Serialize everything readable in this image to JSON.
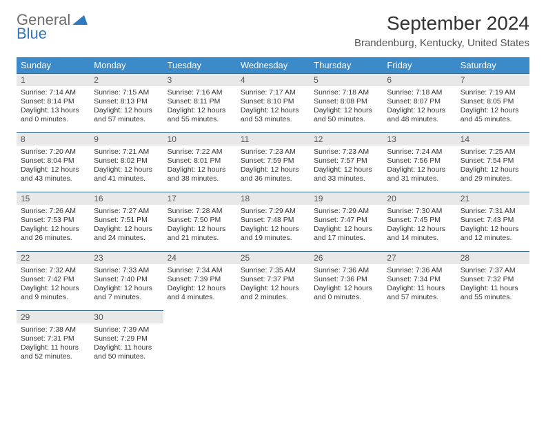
{
  "logo": {
    "general": "General",
    "blue": "Blue",
    "blue_color": "#2e79c0",
    "gray_color": "#6e6e6e"
  },
  "title": "September 2024",
  "location": "Brandenburg, Kentucky, United States",
  "weekdays": [
    "Sunday",
    "Monday",
    "Tuesday",
    "Wednesday",
    "Thursday",
    "Friday",
    "Saturday"
  ],
  "header_bg": "#3b8bca",
  "day_border": "#2e5f8a",
  "daynum_bg": "#e8e8e8",
  "weeks": [
    [
      {
        "n": "1",
        "sr": "Sunrise: 7:14 AM",
        "ss": "Sunset: 8:14 PM",
        "dl1": "Daylight: 13 hours",
        "dl2": "and 0 minutes."
      },
      {
        "n": "2",
        "sr": "Sunrise: 7:15 AM",
        "ss": "Sunset: 8:13 PM",
        "dl1": "Daylight: 12 hours",
        "dl2": "and 57 minutes."
      },
      {
        "n": "3",
        "sr": "Sunrise: 7:16 AM",
        "ss": "Sunset: 8:11 PM",
        "dl1": "Daylight: 12 hours",
        "dl2": "and 55 minutes."
      },
      {
        "n": "4",
        "sr": "Sunrise: 7:17 AM",
        "ss": "Sunset: 8:10 PM",
        "dl1": "Daylight: 12 hours",
        "dl2": "and 53 minutes."
      },
      {
        "n": "5",
        "sr": "Sunrise: 7:18 AM",
        "ss": "Sunset: 8:08 PM",
        "dl1": "Daylight: 12 hours",
        "dl2": "and 50 minutes."
      },
      {
        "n": "6",
        "sr": "Sunrise: 7:18 AM",
        "ss": "Sunset: 8:07 PM",
        "dl1": "Daylight: 12 hours",
        "dl2": "and 48 minutes."
      },
      {
        "n": "7",
        "sr": "Sunrise: 7:19 AM",
        "ss": "Sunset: 8:05 PM",
        "dl1": "Daylight: 12 hours",
        "dl2": "and 45 minutes."
      }
    ],
    [
      {
        "n": "8",
        "sr": "Sunrise: 7:20 AM",
        "ss": "Sunset: 8:04 PM",
        "dl1": "Daylight: 12 hours",
        "dl2": "and 43 minutes."
      },
      {
        "n": "9",
        "sr": "Sunrise: 7:21 AM",
        "ss": "Sunset: 8:02 PM",
        "dl1": "Daylight: 12 hours",
        "dl2": "and 41 minutes."
      },
      {
        "n": "10",
        "sr": "Sunrise: 7:22 AM",
        "ss": "Sunset: 8:01 PM",
        "dl1": "Daylight: 12 hours",
        "dl2": "and 38 minutes."
      },
      {
        "n": "11",
        "sr": "Sunrise: 7:23 AM",
        "ss": "Sunset: 7:59 PM",
        "dl1": "Daylight: 12 hours",
        "dl2": "and 36 minutes."
      },
      {
        "n": "12",
        "sr": "Sunrise: 7:23 AM",
        "ss": "Sunset: 7:57 PM",
        "dl1": "Daylight: 12 hours",
        "dl2": "and 33 minutes."
      },
      {
        "n": "13",
        "sr": "Sunrise: 7:24 AM",
        "ss": "Sunset: 7:56 PM",
        "dl1": "Daylight: 12 hours",
        "dl2": "and 31 minutes."
      },
      {
        "n": "14",
        "sr": "Sunrise: 7:25 AM",
        "ss": "Sunset: 7:54 PM",
        "dl1": "Daylight: 12 hours",
        "dl2": "and 29 minutes."
      }
    ],
    [
      {
        "n": "15",
        "sr": "Sunrise: 7:26 AM",
        "ss": "Sunset: 7:53 PM",
        "dl1": "Daylight: 12 hours",
        "dl2": "and 26 minutes."
      },
      {
        "n": "16",
        "sr": "Sunrise: 7:27 AM",
        "ss": "Sunset: 7:51 PM",
        "dl1": "Daylight: 12 hours",
        "dl2": "and 24 minutes."
      },
      {
        "n": "17",
        "sr": "Sunrise: 7:28 AM",
        "ss": "Sunset: 7:50 PM",
        "dl1": "Daylight: 12 hours",
        "dl2": "and 21 minutes."
      },
      {
        "n": "18",
        "sr": "Sunrise: 7:29 AM",
        "ss": "Sunset: 7:48 PM",
        "dl1": "Daylight: 12 hours",
        "dl2": "and 19 minutes."
      },
      {
        "n": "19",
        "sr": "Sunrise: 7:29 AM",
        "ss": "Sunset: 7:47 PM",
        "dl1": "Daylight: 12 hours",
        "dl2": "and 17 minutes."
      },
      {
        "n": "20",
        "sr": "Sunrise: 7:30 AM",
        "ss": "Sunset: 7:45 PM",
        "dl1": "Daylight: 12 hours",
        "dl2": "and 14 minutes."
      },
      {
        "n": "21",
        "sr": "Sunrise: 7:31 AM",
        "ss": "Sunset: 7:43 PM",
        "dl1": "Daylight: 12 hours",
        "dl2": "and 12 minutes."
      }
    ],
    [
      {
        "n": "22",
        "sr": "Sunrise: 7:32 AM",
        "ss": "Sunset: 7:42 PM",
        "dl1": "Daylight: 12 hours",
        "dl2": "and 9 minutes."
      },
      {
        "n": "23",
        "sr": "Sunrise: 7:33 AM",
        "ss": "Sunset: 7:40 PM",
        "dl1": "Daylight: 12 hours",
        "dl2": "and 7 minutes."
      },
      {
        "n": "24",
        "sr": "Sunrise: 7:34 AM",
        "ss": "Sunset: 7:39 PM",
        "dl1": "Daylight: 12 hours",
        "dl2": "and 4 minutes."
      },
      {
        "n": "25",
        "sr": "Sunrise: 7:35 AM",
        "ss": "Sunset: 7:37 PM",
        "dl1": "Daylight: 12 hours",
        "dl2": "and 2 minutes."
      },
      {
        "n": "26",
        "sr": "Sunrise: 7:36 AM",
        "ss": "Sunset: 7:36 PM",
        "dl1": "Daylight: 12 hours",
        "dl2": "and 0 minutes."
      },
      {
        "n": "27",
        "sr": "Sunrise: 7:36 AM",
        "ss": "Sunset: 7:34 PM",
        "dl1": "Daylight: 11 hours",
        "dl2": "and 57 minutes."
      },
      {
        "n": "28",
        "sr": "Sunrise: 7:37 AM",
        "ss": "Sunset: 7:32 PM",
        "dl1": "Daylight: 11 hours",
        "dl2": "and 55 minutes."
      }
    ],
    [
      {
        "n": "29",
        "sr": "Sunrise: 7:38 AM",
        "ss": "Sunset: 7:31 PM",
        "dl1": "Daylight: 11 hours",
        "dl2": "and 52 minutes."
      },
      {
        "n": "30",
        "sr": "Sunrise: 7:39 AM",
        "ss": "Sunset: 7:29 PM",
        "dl1": "Daylight: 11 hours",
        "dl2": "and 50 minutes."
      },
      null,
      null,
      null,
      null,
      null
    ]
  ]
}
